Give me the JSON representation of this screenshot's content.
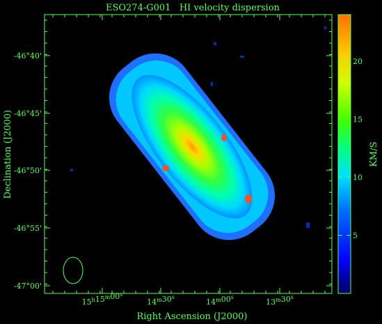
{
  "chart_data": {
    "type": "heatmap",
    "title": "ESO274-G001   HI velocity dispersion",
    "xlabel": "Right Ascension (J2000)",
    "ylabel": "Declination (J2000)",
    "colorbar_label": "KM/S",
    "x_ticks": [
      {
        "label": "15h15m00s",
        "prefix": "15",
        "h": "h",
        "mid": "15",
        "m": "m",
        "sec": "00",
        "s": "s"
      },
      {
        "label": "14m30s",
        "prefix": "14",
        "h": "",
        "mid": "m",
        "m": "",
        "sec": "30",
        "s": "s"
      },
      {
        "label": "14m00s",
        "prefix": "14",
        "h": "",
        "mid": "m",
        "m": "",
        "sec": "00",
        "s": "s"
      },
      {
        "label": "13m30s",
        "prefix": "13",
        "h": "",
        "mid": "m",
        "m": "",
        "sec": "30",
        "s": "s"
      }
    ],
    "y_ticks": [
      "-46°40'",
      "-46°45'",
      "-46°50'",
      "-46°55'",
      "-47°00'"
    ],
    "colorbar": {
      "vmin": 0,
      "vmax": 24,
      "ticks": [
        5,
        10,
        15,
        20
      ]
    },
    "colors": {
      "axis": "#5cff5c",
      "background": "#000000"
    }
  }
}
